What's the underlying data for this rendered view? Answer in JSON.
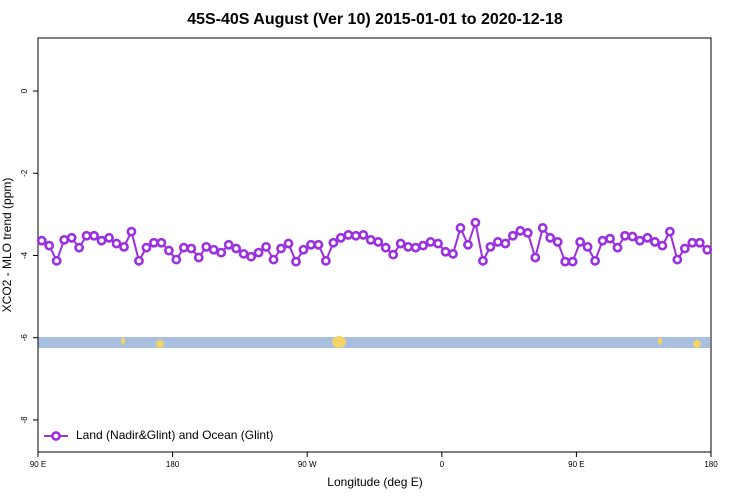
{
  "chart_data": {
    "type": "line",
    "title": "45S-40S August (Ver 10)   2015-01-01 to 2020-12-18",
    "x_label": "Longitude (deg E)",
    "y_label": "XCO2 - MLO trend (ppm)",
    "xlim": [
      90,
      540
    ],
    "ylim": [
      -8.78,
      1.29
    ],
    "xticks": [
      {
        "value": 90,
        "label": "90 E"
      },
      180,
      {
        "value": 270,
        "label": "90 W"
      },
      {
        "value": 360,
        "label": "0"
      },
      {
        "value": 450,
        "label": "90 E"
      },
      {
        "value": 540,
        "label": "180"
      }
    ],
    "yticks": [
      0,
      -2,
      -4,
      -6,
      -8
    ],
    "legend": "bottomleft",
    "x": [
      92.5,
      97.5,
      102.5,
      107.5,
      112.5,
      117.5,
      122.5,
      127.5,
      132.5,
      137.5,
      142.5,
      147.5,
      152.5,
      157.5,
      162.5,
      167.5,
      172.5,
      177.5,
      182.5,
      187.5,
      192.5,
      197.5,
      202.5,
      207.5,
      212.5,
      217.5,
      222.5,
      227.5,
      232.5,
      237.5,
      242.5,
      247.5,
      252.5,
      257.5,
      262.5,
      267.5,
      272.5,
      277.5,
      282.5,
      287.5,
      292.5,
      297.5,
      302.5,
      307.5,
      312.5,
      317.5,
      322.5,
      327.5,
      332.5,
      337.5,
      342.5,
      347.5,
      352.5,
      357.5,
      362.5,
      367.5,
      372.5,
      377.5,
      382.5,
      387.5,
      392.5,
      397.5,
      402.5,
      407.5,
      412.5,
      417.5,
      422.5,
      427.5,
      432.5,
      437.5,
      442.5,
      447.5,
      452.5,
      457.5,
      462.5,
      467.5,
      472.5,
      477.5,
      482.5,
      487.5,
      492.5,
      497.5,
      502.5,
      507.5,
      512.5,
      517.5,
      522.5,
      527.5,
      532.5,
      537.5
    ],
    "series": [
      {
        "name": "Land (Nadir&Glint) and Ocean (Glint)",
        "color": "#9b30e0",
        "values": [
          -3.64,
          -3.76,
          -4.13,
          -3.62,
          -3.57,
          -3.81,
          -3.52,
          -3.52,
          -3.64,
          -3.57,
          -3.71,
          -3.79,
          -3.42,
          -4.13,
          -3.81,
          -3.69,
          -3.69,
          -3.88,
          -4.1,
          -3.81,
          -3.83,
          -4.05,
          -3.79,
          -3.86,
          -3.93,
          -3.74,
          -3.83,
          -3.96,
          -4.03,
          -3.93,
          -3.79,
          -4.1,
          -3.83,
          -3.71,
          -4.15,
          -3.86,
          -3.74,
          -3.74,
          -4.13,
          -3.69,
          -3.57,
          -3.5,
          -3.52,
          -3.5,
          -3.62,
          -3.67,
          -3.81,
          -3.98,
          -3.71,
          -3.79,
          -3.81,
          -3.76,
          -3.67,
          -3.71,
          -3.91,
          -3.96,
          -3.33,
          -3.74,
          -3.2,
          -4.13,
          -3.79,
          -3.67,
          -3.71,
          -3.52,
          -3.4,
          -3.45,
          -4.05,
          -3.33,
          -3.57,
          -3.67,
          -4.15,
          -4.15,
          -3.67,
          -3.79,
          -4.13,
          -3.64,
          -3.59,
          -3.81,
          -3.52,
          -3.54,
          -3.64,
          -3.57,
          -3.67,
          -3.76,
          -3.42,
          -4.1,
          -3.83,
          -3.69,
          -3.69,
          -3.86
        ]
      }
    ]
  }
}
